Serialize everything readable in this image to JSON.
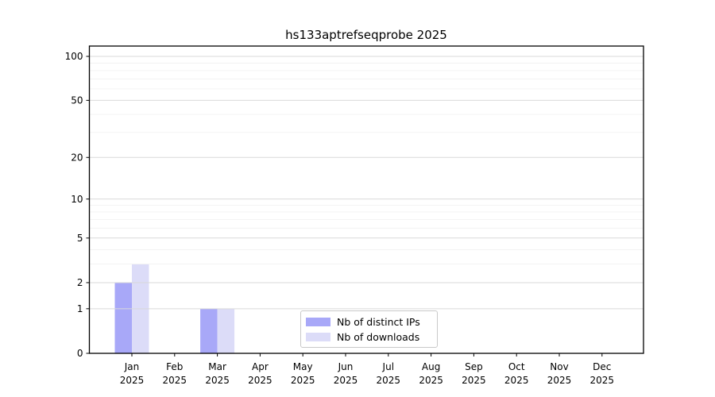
{
  "chart_data": {
    "type": "bar",
    "title": "hs133aptrefseqprobe 2025",
    "categories": [
      "Jan",
      "Feb",
      "Mar",
      "Apr",
      "May",
      "Jun",
      "Jul",
      "Aug",
      "Sep",
      "Oct",
      "Nov",
      "Dec"
    ],
    "category_year": "2025",
    "series": [
      {
        "name": "Nb of distinct IPs",
        "color": "#a8a8f8",
        "values": [
          2,
          0,
          1,
          0,
          0,
          0,
          0,
          0,
          0,
          0,
          0,
          0
        ]
      },
      {
        "name": "Nb of downloads",
        "color": "#dcdcf8",
        "values": [
          3,
          0,
          1,
          0,
          0,
          0,
          0,
          0,
          0,
          0,
          0,
          0
        ]
      }
    ],
    "yaxis": {
      "scale": "log1p",
      "major_ticks": [
        0,
        1,
        2,
        5,
        10,
        20,
        50,
        100
      ],
      "minor_gridlines": [
        3,
        4,
        6,
        7,
        8,
        9,
        30,
        40,
        60,
        70,
        80,
        90
      ],
      "top_value": 118
    },
    "xlabel": "",
    "ylabel": "",
    "grid": {
      "major_color": "#d9d9d9",
      "minor_color": "#f0f0f0"
    },
    "legend_position": "lower center",
    "axis_color": "#000000"
  }
}
